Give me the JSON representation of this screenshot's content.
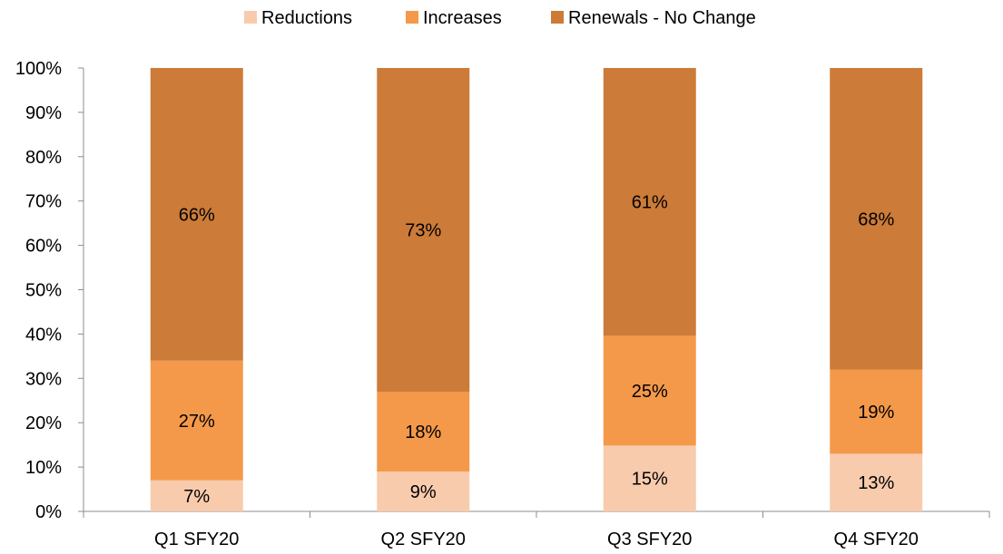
{
  "chart_data": {
    "type": "bar",
    "stacked": true,
    "percent_stacked": true,
    "categories": [
      "Q1 SFY20",
      "Q2 SFY20",
      "Q3 SFY20",
      "Q4 SFY20"
    ],
    "series": [
      {
        "name": "Reductions",
        "values": [
          7,
          9,
          15,
          13
        ],
        "labels": [
          "7%",
          "9%",
          "15%",
          "13%"
        ],
        "color": "#F8CBAD"
      },
      {
        "name": "Increases",
        "values": [
          27,
          18,
          25,
          19
        ],
        "labels": [
          "27%",
          "18%",
          "25%",
          "19%"
        ],
        "color": "#F4994A"
      },
      {
        "name": "Renewals - No Change",
        "values": [
          66,
          73,
          61,
          68
        ],
        "labels": [
          "66%",
          "73%",
          "61%",
          "68%"
        ],
        "color": "#CC7B38"
      }
    ],
    "ylim": [
      0,
      100
    ],
    "yticks": [
      "0%",
      "10%",
      "20%",
      "30%",
      "40%",
      "50%",
      "60%",
      "70%",
      "80%",
      "90%",
      "100%"
    ],
    "legend_position": "top",
    "grid": false
  }
}
